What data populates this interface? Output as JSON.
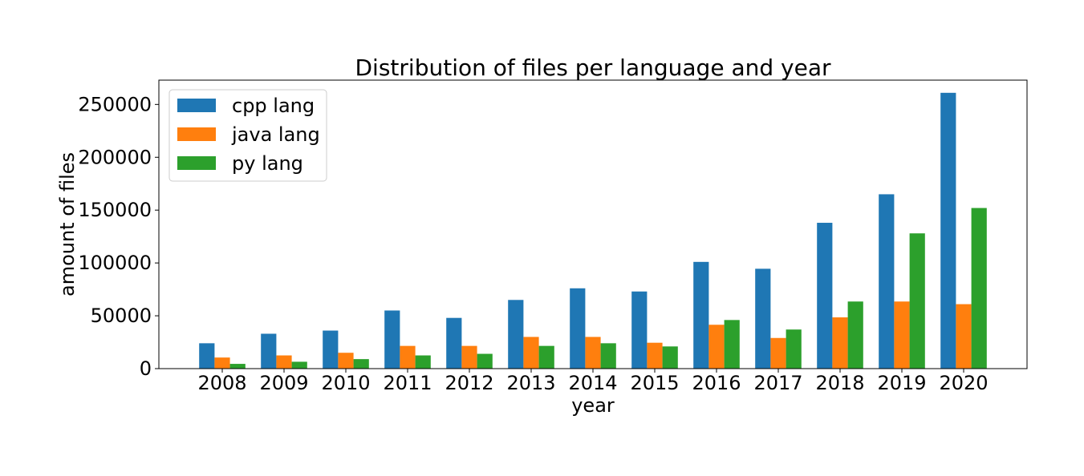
{
  "chart_data": {
    "type": "bar",
    "title": "Distribution of files per language and year",
    "xlabel": "year",
    "ylabel": "amount of files",
    "categories": [
      "2008",
      "2009",
      "2010",
      "2011",
      "2012",
      "2013",
      "2014",
      "2015",
      "2016",
      "2017",
      "2018",
      "2019",
      "2020"
    ],
    "series": [
      {
        "name": "cpp lang",
        "color": "#1f77b4",
        "values": [
          24000,
          33000,
          36000,
          55000,
          48000,
          65000,
          76000,
          73000,
          101000,
          94500,
          138000,
          165000,
          261000
        ]
      },
      {
        "name": "java lang",
        "color": "#ff7f0e",
        "values": [
          10500,
          12500,
          15000,
          21500,
          21500,
          30000,
          30000,
          24500,
          41500,
          29000,
          48500,
          63500,
          61000
        ]
      },
      {
        "name": "py lang",
        "color": "#2ca02c",
        "values": [
          4500,
          6500,
          9000,
          12500,
          14000,
          21500,
          24000,
          21000,
          46000,
          37000,
          63500,
          128000,
          152000
        ]
      }
    ],
    "ylim": [
      0,
      273000
    ],
    "yticks": [
      0,
      50000,
      100000,
      150000,
      200000,
      250000
    ],
    "ytick_labels": [
      "0",
      "50000",
      "100000",
      "150000",
      "200000",
      "250000"
    ],
    "grid": false,
    "legend_position": "top-left"
  }
}
